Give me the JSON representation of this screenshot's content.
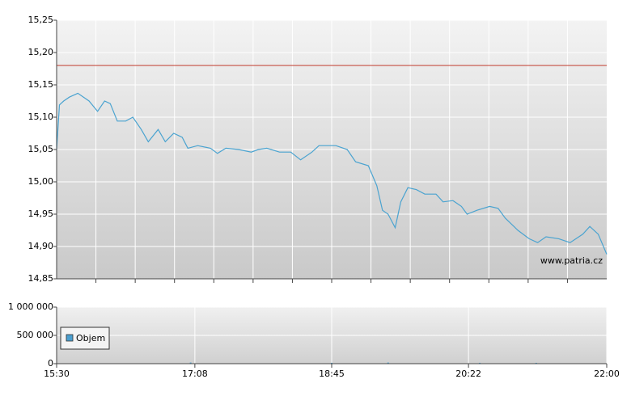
{
  "chart_data": [
    {
      "type": "line",
      "x": [
        "15:30",
        "15:32",
        "15:35",
        "15:39",
        "15:45",
        "15:53",
        "15:59",
        "16:04",
        "16:08",
        "16:13",
        "16:19",
        "16:24",
        "16:30",
        "16:35",
        "16:42",
        "16:47",
        "16:53",
        "16:59",
        "17:03",
        "17:10",
        "17:19",
        "17:24",
        "17:30",
        "17:39",
        "17:48",
        "17:53",
        "17:59",
        "18:08",
        "18:16",
        "18:23",
        "18:31",
        "18:36",
        "18:48",
        "18:56",
        "19:02",
        "19:11",
        "19:17",
        "19:21",
        "19:25",
        "19:30",
        "19:34",
        "19:39",
        "19:45",
        "19:51",
        "19:59",
        "20:04",
        "20:11",
        "20:17",
        "20:21",
        "20:28",
        "20:37",
        "20:43",
        "20:48",
        "20:57",
        "21:05",
        "21:11",
        "21:17",
        "21:26",
        "21:34",
        "21:43",
        "21:48",
        "21:54",
        "22:00"
      ],
      "series": [
        {
          "color": "#4aa3d0",
          "values": [
            15.05,
            15.119,
            15.125,
            15.131,
            15.137,
            15.125,
            15.109,
            15.125,
            15.121,
            15.094,
            15.094,
            15.1,
            15.081,
            15.062,
            15.081,
            15.062,
            15.075,
            15.069,
            15.052,
            15.056,
            15.052,
            15.044,
            15.052,
            15.05,
            15.046,
            15.05,
            15.052,
            15.046,
            15.046,
            15.034,
            15.046,
            15.056,
            15.056,
            15.05,
            15.031,
            15.025,
            14.994,
            14.956,
            14.95,
            14.929,
            14.969,
            14.991,
            14.988,
            14.981,
            14.981,
            14.969,
            14.971,
            14.962,
            14.95,
            14.956,
            14.962,
            14.959,
            14.944,
            14.925,
            14.912,
            14.906,
            14.915,
            14.912,
            14.906,
            14.919,
            14.931,
            14.919,
            14.888
          ]
        }
      ],
      "xlim": [
        "15:30",
        "22:00"
      ],
      "ylim": [
        14.85,
        15.25
      ],
      "yticks": [
        {
          "value": 14.85,
          "label": "14,85"
        },
        {
          "value": 14.9,
          "label": "14,90"
        },
        {
          "value": 14.95,
          "label": "14,95"
        },
        {
          "value": 15.0,
          "label": "15,00"
        },
        {
          "value": 15.05,
          "label": "15,05"
        },
        {
          "value": 15.1,
          "label": "15,10"
        },
        {
          "value": 15.15,
          "label": "15,15"
        },
        {
          "value": 15.2,
          "label": "15,20"
        },
        {
          "value": 15.25,
          "label": "15,25"
        }
      ],
      "reference_line": {
        "value": 15.18,
        "color": "#c0392b"
      },
      "watermark": "www.patria.cz",
      "grid": true
    },
    {
      "type": "bar",
      "x": [
        "17:05",
        "18:45",
        "19:25",
        "20:30",
        "21:10"
      ],
      "series": [
        {
          "name": "Objem",
          "color": "#4a9fd0",
          "values": [
            20000,
            15000,
            20000,
            15000,
            15000
          ]
        }
      ],
      "xlim": [
        "15:30",
        "22:00"
      ],
      "xticks": [
        "15:30",
        "17:08",
        "18:45",
        "20:22",
        "22:00"
      ],
      "ylim": [
        0,
        1000000
      ],
      "yticks": [
        0,
        {
          "value": 500000,
          "label": "500 000"
        },
        {
          "value": 1000000,
          "label": "1 000 000"
        }
      ],
      "legend": "lower left",
      "grid": true
    }
  ]
}
